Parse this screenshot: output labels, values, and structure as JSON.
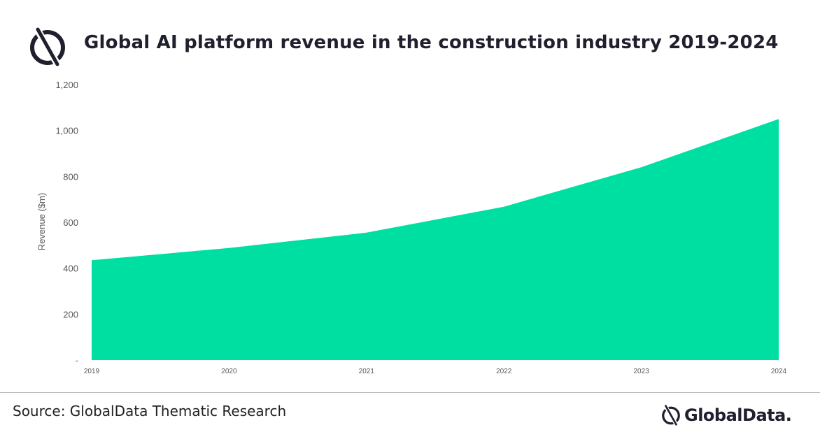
{
  "header": {
    "title": "Global AI platform revenue in the construction industry 2019-2024",
    "logo_icon": "globaldata-mark-icon"
  },
  "footer": {
    "source": "Source: GlobalData Thematic Research",
    "brand_name": "GlobalData.",
    "brand_icon": "globaldata-mark-icon"
  },
  "colors": {
    "area_fill": "#00dfa2",
    "text_dark": "#1f1f2e",
    "axis_text": "#595959"
  },
  "chart_data": {
    "type": "area",
    "title": "Global AI platform revenue in the construction industry 2019-2024",
    "xlabel": "",
    "ylabel": "Revenue ($m)",
    "x": [
      "2019",
      "2020",
      "2021",
      "2022",
      "2023",
      "2024"
    ],
    "series": [
      {
        "values": [
          435,
          488,
          555,
          668,
          840,
          1050
        ]
      }
    ],
    "ylim": [
      0,
      1200
    ],
    "yticks": [
      0,
      200,
      400,
      600,
      800,
      1000,
      1200
    ],
    "ytick_labels": [
      "-",
      "200",
      "400",
      "600",
      "800",
      "1,000",
      "1,200"
    ],
    "grid": false,
    "legend": "none"
  }
}
